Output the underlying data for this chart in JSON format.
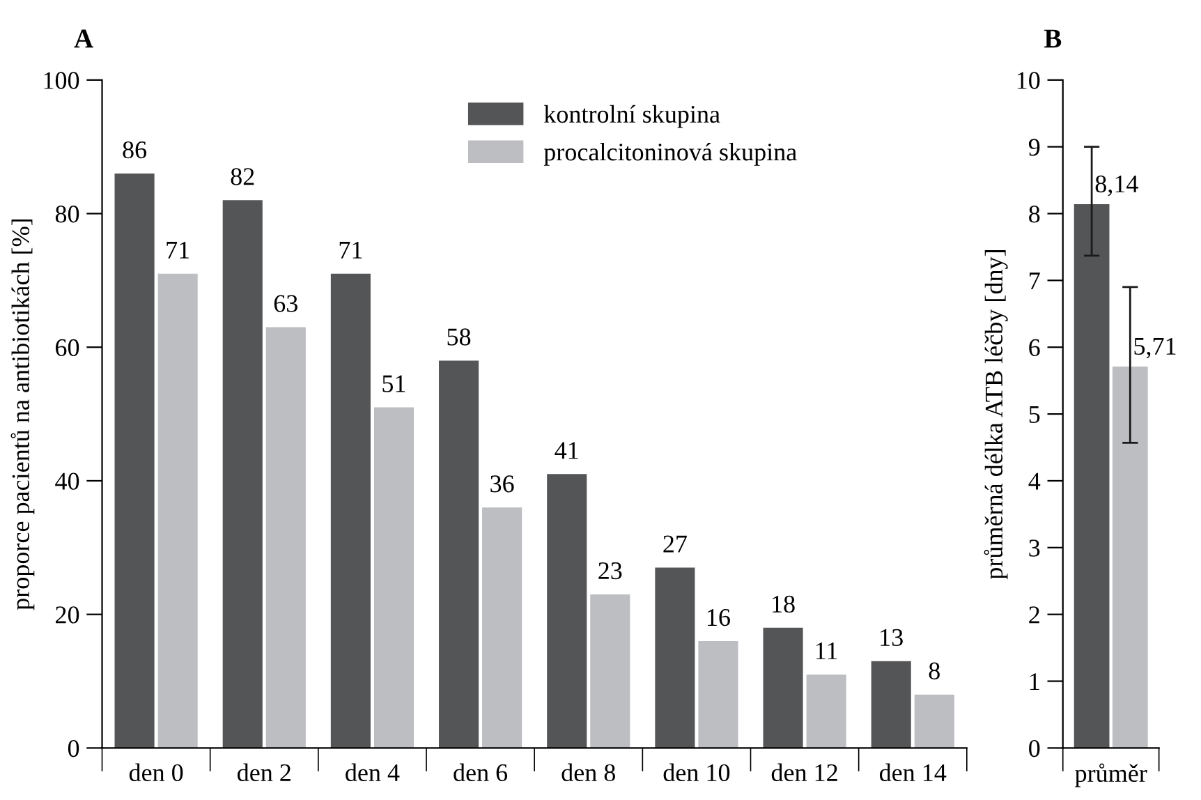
{
  "chart_data": [
    {
      "type": "bar",
      "title": "A",
      "ylabel": "proporce pacientů na antibiotikách [%]",
      "categories": [
        "den 0",
        "den 2",
        "den 4",
        "den 6",
        "den 8",
        "den 10",
        "den 12",
        "den 14"
      ],
      "series": [
        {
          "name": "kontrolní skupina",
          "color": "#545557",
          "values": [
            86,
            82,
            71,
            58,
            41,
            27,
            18,
            13
          ]
        },
        {
          "name": "procalcitoninová skupina",
          "color": "#bdbec2",
          "values": [
            71,
            63,
            51,
            36,
            23,
            16,
            11,
            8
          ]
        }
      ],
      "ylim": [
        0,
        100
      ],
      "yticks": [
        0,
        20,
        40,
        60,
        80,
        100
      ],
      "grid": false,
      "legend": "top right",
      "data_labels": true
    },
    {
      "type": "bar",
      "title": "B",
      "ylabel": "průměrná délka ATB léčby [dny]",
      "categories": [
        "průměr"
      ],
      "series": [
        {
          "color": "#545557",
          "values": [
            8.14
          ],
          "value_labels": [
            "8,14"
          ],
          "errors": [
            [
              7.37,
              9.0
            ]
          ]
        },
        {
          "color": "#bdbec2",
          "values": [
            5.71
          ],
          "value_labels": [
            "5,71"
          ],
          "errors": [
            [
              4.57,
              6.9
            ]
          ]
        }
      ],
      "ylim": [
        0,
        10
      ],
      "yticks": [
        0,
        1,
        2,
        3,
        4,
        5,
        6,
        7,
        8,
        9,
        10
      ],
      "grid": false
    }
  ]
}
